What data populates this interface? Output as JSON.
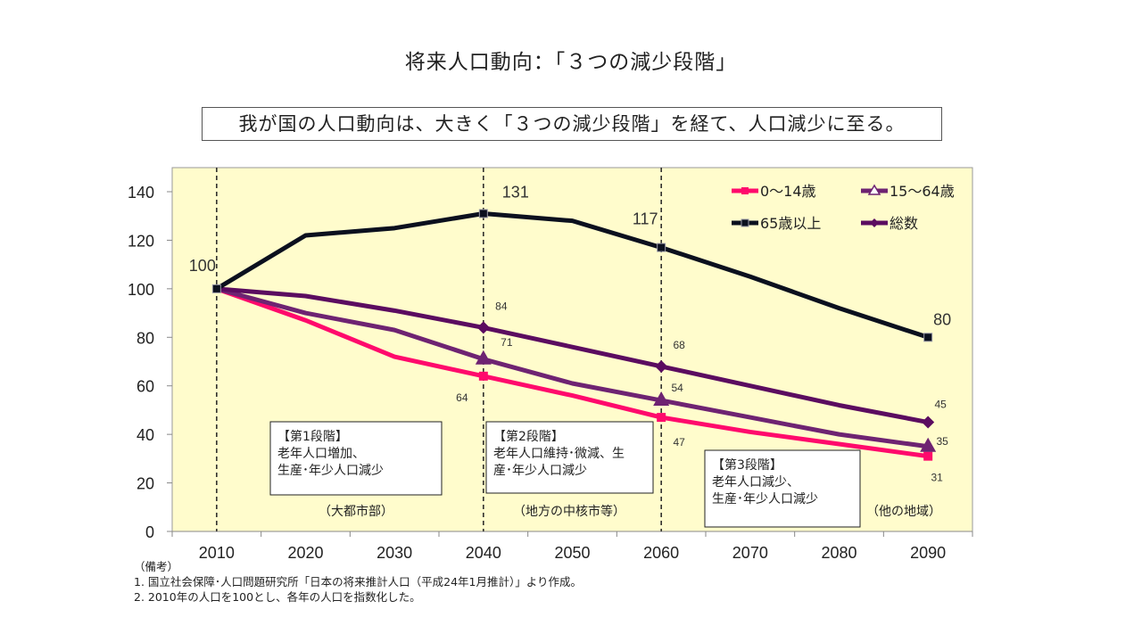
{
  "title": "将来人口動向：「３つの減少段階」",
  "subtitle": "我が国の人口動向は、大きく「３つの減少段階」を経て、人口減少に至る。",
  "notes": {
    "header": "（備考）",
    "lines": [
      "1. 国立社会保障･人口問題研究所「日本の将来推計人口（平成24年1月推計）」より作成。",
      "2. 2010年の人口を100とし、各年の人口を指数化した。"
    ]
  },
  "colors": {
    "plot_bg": "#fffccc",
    "age_0_14": "#ff0a6c",
    "age_15_64": "#6e2372",
    "age_65_plus": "#0b101e",
    "total": "#5b0c60"
  },
  "stage_boxes": [
    {
      "heading": "【第1段階】",
      "lines": [
        "老年人口増加、",
        "生産･年少人口減少"
      ],
      "region": "（大都市部）"
    },
    {
      "heading": "【第2段階】",
      "lines": [
        "老年人口維持･微減、生",
        "産･年少人口減少"
      ],
      "region": "（地方の中核市等）"
    },
    {
      "heading": "【第3段階】",
      "lines": [
        "老年人口減少、",
        "生産･年少人口減少"
      ],
      "region": "（他の地域）"
    }
  ],
  "chart_data": {
    "type": "line",
    "title": "将来人口動向：「３つの減少段階」",
    "xlabel": "",
    "ylabel": "",
    "categories": [
      "2010",
      "2020",
      "2030",
      "2040",
      "2050",
      "2060",
      "2070",
      "2080",
      "2090"
    ],
    "ylim": [
      0,
      140
    ],
    "yticks": [
      0,
      20,
      40,
      60,
      80,
      100,
      120,
      140
    ],
    "grid": false,
    "legend_position": "top-right",
    "reference_lines_at": [
      "2010",
      "2040",
      "2060"
    ],
    "series": [
      {
        "name": "0～14歳",
        "key": "age_0_14",
        "marker": "square",
        "values": [
          100,
          87,
          72,
          64,
          56,
          47,
          41,
          36,
          31
        ],
        "labels": {
          "3": "64",
          "5": "47",
          "8": "31"
        }
      },
      {
        "name": "15～64歳",
        "key": "age_15_64",
        "marker": "triangle",
        "values": [
          100,
          90,
          83,
          71,
          61,
          54,
          47,
          40,
          35
        ],
        "labels": {
          "3": "71",
          "5": "54",
          "8": "35"
        }
      },
      {
        "name": "65歳以上",
        "key": "age_65_plus",
        "marker": "square",
        "values": [
          100,
          122,
          125,
          131,
          128,
          117,
          105,
          92,
          80
        ],
        "labels": {
          "0": "100",
          "3": "131",
          "5": "117",
          "8": "80"
        }
      },
      {
        "name": "総数",
        "key": "total",
        "marker": "diamond",
        "values": [
          100,
          97,
          91,
          84,
          76,
          68,
          60,
          52,
          45
        ],
        "labels": {
          "3": "84",
          "5": "68",
          "8": "45"
        }
      }
    ]
  }
}
